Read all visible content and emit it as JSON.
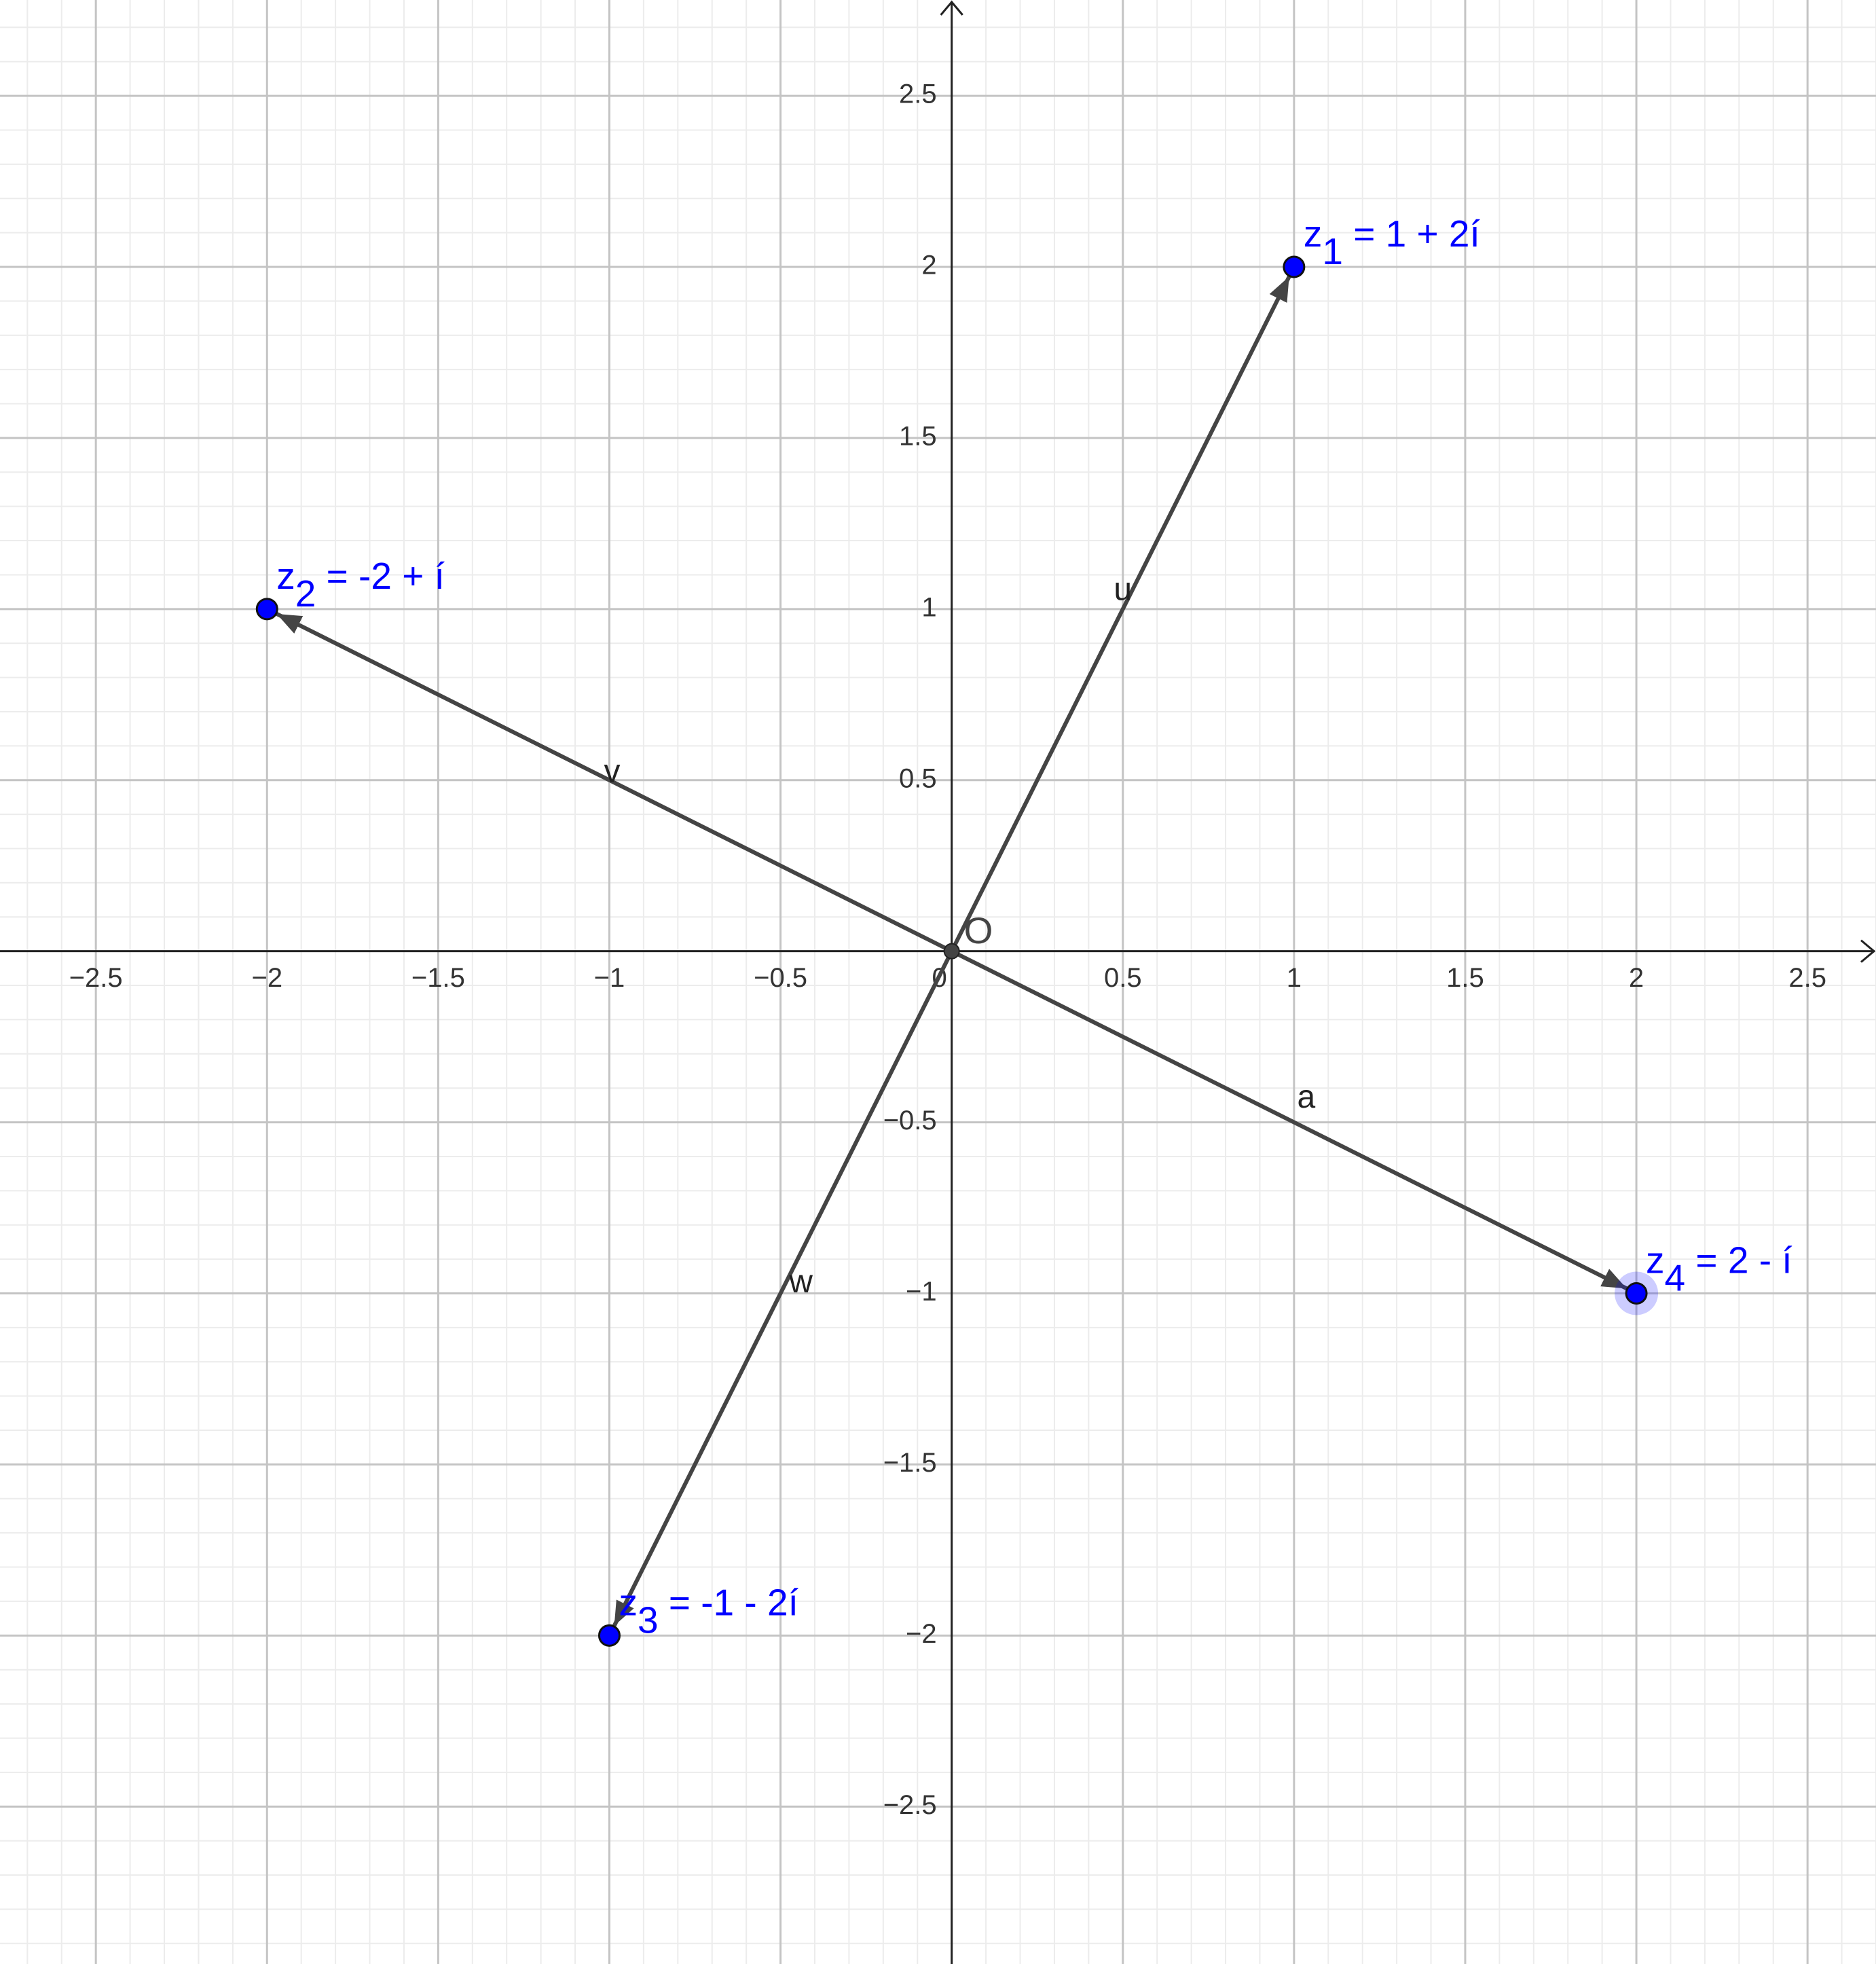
{
  "chart_data": {
    "type": "vector",
    "xlim": [
      -2.78,
      2.7
    ],
    "ylim": [
      -2.96,
      2.78
    ],
    "xticks": [
      {
        "value": -2.5,
        "label": "−2.5"
      },
      {
        "value": -2,
        "label": "−2"
      },
      {
        "value": -1.5,
        "label": "−1.5"
      },
      {
        "value": -1,
        "label": "−1"
      },
      {
        "value": -0.5,
        "label": "−0.5"
      },
      0,
      0.5,
      1,
      1.5,
      2,
      2.5
    ],
    "yticks": [
      {
        "value": -2.5,
        "label": "−2.5"
      },
      {
        "value": -2,
        "label": "−2"
      },
      {
        "value": -1.5,
        "label": "−1.5"
      },
      {
        "value": -1,
        "label": "−1"
      },
      {
        "value": -0.5,
        "label": "−0.5"
      },
      0.5,
      1,
      1.5,
      2,
      2.5
    ],
    "grid": true,
    "minor_grid_divisions": 5,
    "origin": {
      "name": "O",
      "x": 0,
      "y": 0,
      "color": "#444444"
    },
    "points": [
      {
        "name": "z",
        "subscript": "1",
        "expr": " = 1 + 2í",
        "x": 1,
        "y": 2,
        "color": "#0000ff"
      },
      {
        "name": "z",
        "subscript": "2",
        "expr": " = -2 + í",
        "x": -2,
        "y": 1,
        "color": "#0000ff"
      },
      {
        "name": "z",
        "subscript": "3",
        "expr": " = -1 - 2í",
        "x": -1,
        "y": -2,
        "color": "#0000ff"
      },
      {
        "name": "z",
        "subscript": "4",
        "expr": " = 2 - í",
        "x": 2,
        "y": -1,
        "color": "#0000ff",
        "selected": true
      }
    ],
    "vectors": [
      {
        "name": "u",
        "x": 1,
        "y": 2,
        "color": "#444444"
      },
      {
        "name": "v",
        "x": -2,
        "y": 1,
        "color": "#444444"
      },
      {
        "name": "w",
        "x": -1,
        "y": -2,
        "color": "#444444"
      },
      {
        "name": "a",
        "x": 2,
        "y": -1,
        "color": "#444444"
      }
    ]
  }
}
